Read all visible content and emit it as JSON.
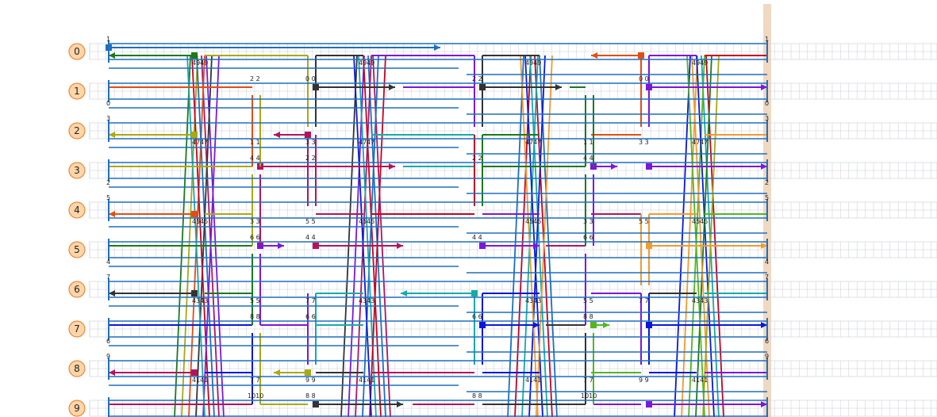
{
  "diagram": {
    "lanes": [
      "0",
      "1",
      "2",
      "3",
      "4",
      "5",
      "6",
      "7",
      "8",
      "9"
    ],
    "colors": {
      "lane_circle_fill": "#fdd5a8",
      "lane_circle_stroke": "#e9893b",
      "grid": "#c9ccd6",
      "rail": "#1f6fbf",
      "highlight_band": "#f0d9c2"
    },
    "top_marks": [
      "1",
      "1"
    ],
    "lane_left_labels": {
      "0": [
        "1"
      ],
      "1": [
        "0"
      ],
      "2": [
        "3"
      ],
      "3": [
        "2"
      ],
      "4": [
        "5"
      ],
      "5": [
        "4"
      ],
      "6": [
        "7"
      ],
      "7": [
        "6"
      ],
      "8": [
        "9"
      ],
      "9": []
    },
    "lane_right_labels": {
      "0": [
        "1"
      ],
      "1": [
        "0"
      ],
      "2": [
        "3"
      ],
      "3": [
        "2"
      ],
      "4": [
        "5"
      ],
      "5": [
        "4"
      ],
      "6": [
        "7"
      ],
      "7": [
        "6"
      ],
      "8": [
        "9"
      ],
      "9": []
    },
    "crossing_labels": {
      "row0": [
        "4949",
        "4949",
        "4949",
        "4949"
      ],
      "row2": [
        "4747",
        "4747",
        "4747",
        "4747"
      ],
      "row4": [
        "4545",
        "4545",
        "4545",
        "4545"
      ],
      "row6": [
        "4343",
        "4343",
        "4343",
        "4343"
      ],
      "row8": [
        "4141",
        "4141",
        "4141",
        "4141"
      ]
    },
    "pair_labels": [
      "2 2",
      "0 0",
      "2 2",
      "0 0",
      "1 1",
      "1 1",
      "3 3",
      "3 3",
      "4 4",
      "2 2",
      "2 2",
      "4 4",
      "3 3",
      "3 3",
      "5 5",
      "5 5",
      "6 6",
      "4 4",
      "4 4",
      "6 6",
      "5 5",
      "5 5",
      "7 7",
      "7 7",
      "8 8",
      "6 6",
      "6 6",
      "8 8",
      "7 7",
      "7 7",
      "9 9",
      "9 9",
      "1010",
      "8 8",
      "8 8",
      "1010"
    ],
    "series_colors": [
      "#1b7a1b",
      "#a9a911",
      "#e44d12",
      "#333333",
      "#7d17d8",
      "#b3135e",
      "#1f6fbf",
      "#c8001f",
      "#17aaaa",
      "#0a17d8",
      "#f19b2c",
      "#52b71d"
    ]
  }
}
